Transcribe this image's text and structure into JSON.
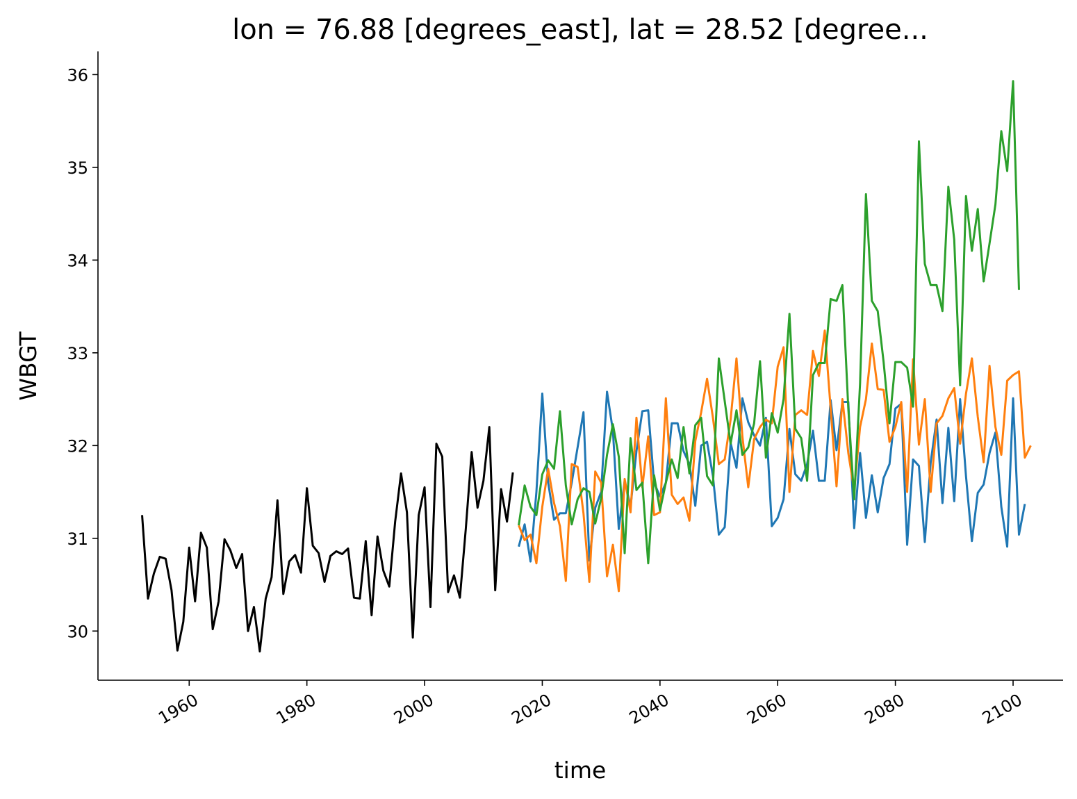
{
  "chart_data": {
    "type": "line",
    "title": "lon = 76.88 [degrees_east], lat = 28.52 [degree...",
    "xlabel": "time",
    "ylabel": "WBGT",
    "xlim": [
      1944.5,
      2108.5
    ],
    "ylim": [
      29.47,
      36.25
    ],
    "x_ticks": [
      1960,
      1980,
      2000,
      2020,
      2040,
      2060,
      2080,
      2100
    ],
    "x_tick_labels": [
      "1960",
      "1980",
      "2000",
      "2020",
      "2040",
      "2060",
      "2080",
      "2100"
    ],
    "y_ticks": [
      30,
      31,
      32,
      33,
      34,
      35,
      36
    ],
    "y_tick_labels": [
      "30",
      "31",
      "32",
      "33",
      "34",
      "35",
      "36"
    ],
    "grid": false,
    "legend": "none",
    "series": [
      {
        "color": "#000000",
        "x_start": 1952,
        "values": [
          31.25,
          30.35,
          30.62,
          30.8,
          30.78,
          30.44,
          29.79,
          30.1,
          30.9,
          30.32,
          31.06,
          30.9,
          30.02,
          30.32,
          30.99,
          30.87,
          30.68,
          30.83,
          30.0,
          30.26,
          29.78,
          30.35,
          30.58,
          31.41,
          30.4,
          30.75,
          30.82,
          30.63,
          31.54,
          30.92,
          30.84,
          30.53,
          30.81,
          30.86,
          30.83,
          30.89,
          30.36,
          30.35,
          30.97,
          30.17,
          31.02,
          30.65,
          30.48,
          31.18,
          31.7,
          31.28,
          29.93,
          31.25,
          31.55,
          30.26,
          32.02,
          31.88,
          30.42,
          30.6,
          30.36,
          31.1,
          31.93,
          31.33,
          31.62,
          32.2,
          30.44,
          31.53,
          31.18,
          31.71
        ]
      },
      {
        "color": "#1f77b4",
        "x_start": 2016,
        "values": [
          30.91,
          31.15,
          30.75,
          31.5,
          32.56,
          31.6,
          31.2,
          31.27,
          31.27,
          31.6,
          31.98,
          32.36,
          30.76,
          31.33,
          31.5,
          32.58,
          32.16,
          31.1,
          31.62,
          31.34,
          31.94,
          32.37,
          32.38,
          31.6,
          31.45,
          31.6,
          32.24,
          32.24,
          31.94,
          31.8,
          31.35,
          32.0,
          32.04,
          31.67,
          31.04,
          31.12,
          32.03,
          31.76,
          32.51,
          32.25,
          32.11,
          32.0,
          32.3,
          31.13,
          31.22,
          31.42,
          32.18,
          31.69,
          31.62,
          31.8,
          32.16,
          31.62,
          31.62,
          32.49,
          31.95,
          32.47,
          32.47,
          31.11,
          31.92,
          31.22,
          31.68,
          31.28,
          31.65,
          31.8,
          32.4,
          32.45,
          30.93,
          31.85,
          31.78,
          30.96,
          31.82,
          32.28,
          31.38,
          32.19,
          31.4,
          32.5,
          31.67,
          30.97,
          31.49,
          31.58,
          31.92,
          32.14,
          31.34,
          30.91,
          32.51,
          31.04,
          31.37
        ]
      },
      {
        "color": "#ff7f0e",
        "x_start": 2016,
        "values": [
          31.14,
          30.98,
          31.04,
          30.73,
          31.34,
          31.75,
          31.38,
          31.13,
          30.54,
          31.8,
          31.77,
          31.27,
          30.53,
          31.72,
          31.6,
          30.59,
          30.93,
          30.43,
          31.64,
          31.28,
          32.3,
          31.55,
          32.1,
          31.25,
          31.28,
          32.51,
          31.47,
          31.37,
          31.44,
          31.19,
          32.05,
          32.36,
          32.72,
          32.3,
          31.8,
          31.85,
          32.28,
          32.94,
          32.1,
          31.55,
          32.07,
          32.2,
          32.28,
          32.24,
          32.85,
          33.06,
          31.5,
          32.33,
          32.38,
          32.33,
          33.02,
          32.75,
          33.24,
          32.4,
          31.56,
          32.5,
          31.92,
          31.52,
          32.2,
          32.5,
          33.1,
          32.61,
          32.6,
          32.04,
          32.2,
          32.47,
          31.5,
          32.93,
          32.01,
          32.5,
          31.5,
          32.24,
          32.32,
          32.51,
          32.62,
          32.02,
          32.56,
          32.94,
          32.31,
          31.82,
          32.86,
          32.2,
          31.9,
          32.7,
          32.76,
          32.8,
          31.87,
          32.0
        ]
      },
      {
        "color": "#2ca02c",
        "x_start": 2016,
        "values": [
          31.14,
          31.57,
          31.34,
          31.25,
          31.69,
          31.84,
          31.75,
          32.37,
          31.57,
          31.15,
          31.42,
          31.54,
          31.5,
          31.16,
          31.43,
          31.9,
          32.23,
          31.88,
          30.84,
          32.08,
          31.52,
          31.6,
          30.73,
          31.68,
          31.3,
          31.6,
          31.85,
          31.65,
          32.2,
          31.7,
          32.22,
          32.3,
          31.67,
          31.57,
          32.94,
          32.48,
          32.02,
          32.38,
          31.9,
          31.98,
          32.24,
          32.91,
          31.87,
          32.35,
          32.14,
          32.5,
          33.42,
          32.18,
          32.08,
          31.62,
          32.76,
          32.89,
          32.89,
          33.58,
          33.56,
          33.73,
          32.4,
          31.42,
          32.67,
          34.71,
          33.56,
          33.45,
          32.9,
          32.24,
          32.9,
          32.9,
          32.84,
          32.42,
          35.28,
          33.96,
          33.73,
          33.73,
          33.45,
          34.79,
          34.22,
          32.65,
          34.69,
          34.1,
          34.55,
          33.77,
          34.18,
          34.6,
          35.39,
          34.96,
          35.93,
          33.68
        ]
      }
    ]
  }
}
